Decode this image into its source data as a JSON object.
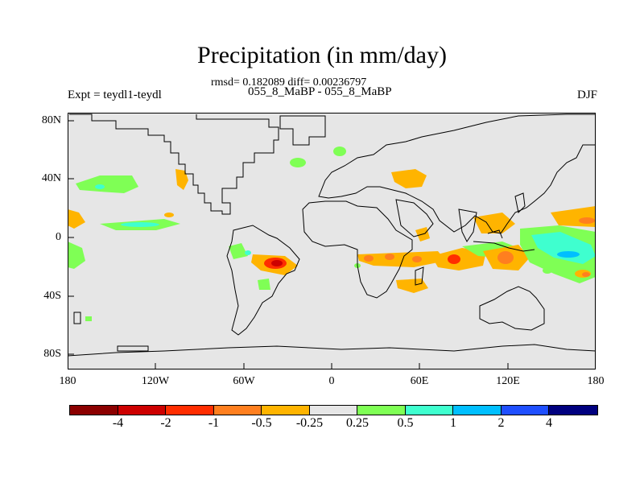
{
  "title": "Precipitation (in mm/day)",
  "stats": "rmsd= 0.182089 diff= 0.00236797",
  "subtitle": "055_8_MaBP - 055_8_MaBP",
  "expt": "Expt = teydl1-teydl",
  "season": "DJF",
  "map": {
    "background": "#e6e6e6",
    "lat_labels": [
      "80N",
      "40N",
      "0",
      "40S",
      "80S"
    ],
    "lon_labels": [
      "180",
      "120W",
      "60W",
      "0",
      "60E",
      "120E",
      "180"
    ]
  },
  "colorbar": {
    "colors": [
      "#8b0000",
      "#cd0000",
      "#ff2d00",
      "#ff7f1f",
      "#ffb400",
      "#e6e6e6",
      "#7fff55",
      "#3fffcf",
      "#00bfff",
      "#1f4fff",
      "#00007f"
    ],
    "labels": [
      "-4",
      "-2",
      "-1",
      "-0.5",
      "-0.25",
      "0.25",
      "0.5",
      "1",
      "2",
      "4"
    ]
  }
}
